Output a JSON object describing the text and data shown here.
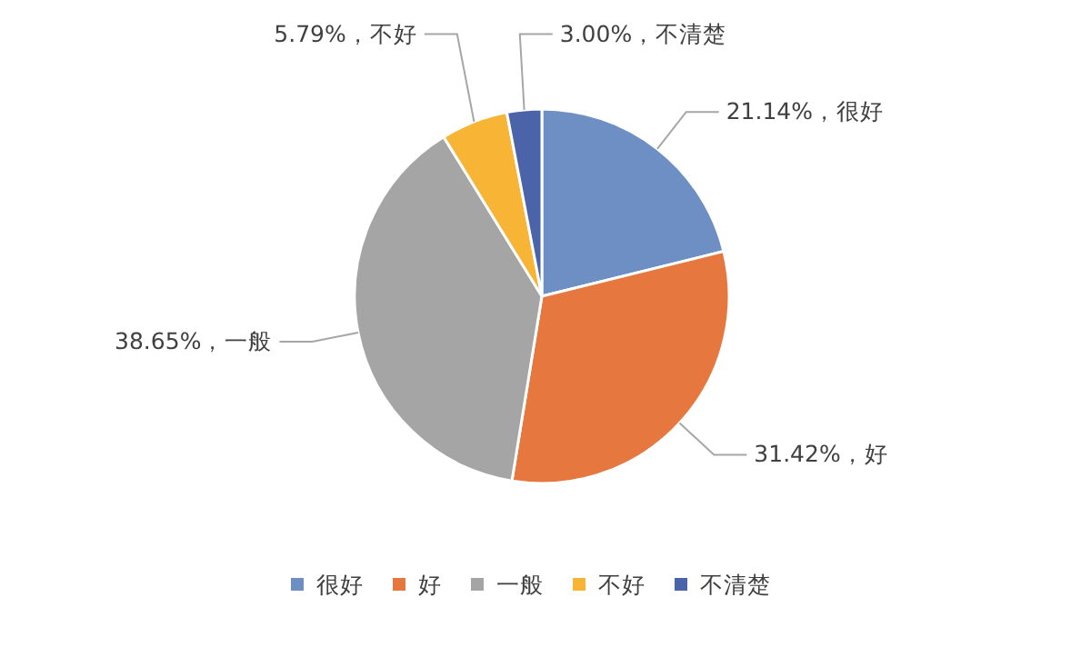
{
  "chart_data": {
    "type": "pie",
    "categories": [
      "很好",
      "好",
      "一般",
      "不好",
      "不清楚"
    ],
    "values": [
      21.14,
      31.42,
      38.65,
      5.79,
      3.0
    ],
    "value_labels": [
      "21.14%，很好",
      "31.42%，好",
      "38.65%，一般",
      "5.79%，不好",
      "3.00%，不清楚"
    ],
    "colors": [
      "#6d8fc3",
      "#e5773f",
      "#a5a5a5",
      "#f8b435",
      "#4b63a8"
    ],
    "legend": "bottom"
  }
}
